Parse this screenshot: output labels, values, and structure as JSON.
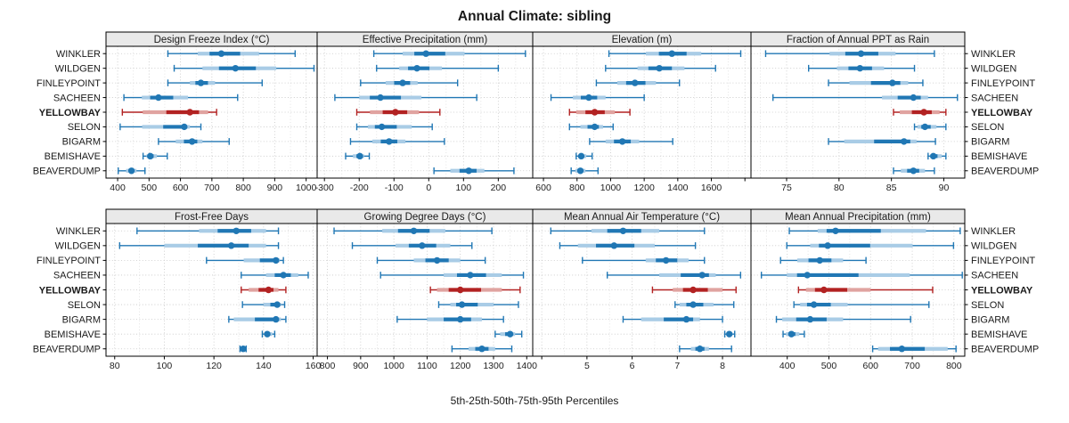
{
  "colors": {
    "blue": "#2077b4",
    "blue_light": "#a9cce6",
    "red": "#b22222",
    "red_light": "#e0a3a0",
    "header_bg": "#e9e9e9",
    "frame": "#000000",
    "grid_major": "#c6c6c6",
    "grid_minor": "#dedede",
    "text": "#1a1a1a"
  },
  "chart_data": {
    "type": "dot-interval",
    "title": "Annual Climate: sibling",
    "caption": "5th-25th-50th-75th-95th Percentiles",
    "percentiles": [
      5,
      25,
      50,
      75,
      95
    ],
    "grid": "dotted",
    "legend_position": "none",
    "highlight_station": "YELLOWBAY",
    "stations": [
      "WINKLER",
      "WILDGEN",
      "FINLEYPOINT",
      "SACHEEN",
      "YELLOWBAY",
      "SELON",
      "BIGARM",
      "BEMISHAVE",
      "BEAVERDUMP"
    ],
    "panels": [
      {
        "title": "Design Freeze Index (°C)",
        "row": 0,
        "col": 0,
        "xlim": [
          363,
          1035
        ],
        "ticks": [
          {
            "v": 400,
            "label": "400"
          },
          {
            "v": 500,
            "label": "500"
          },
          {
            "v": 600,
            "label": "600"
          },
          {
            "v": 700,
            "label": "700"
          },
          {
            "v": 800,
            "label": "800"
          },
          {
            "v": 900,
            "label": "900"
          },
          {
            "v": 1000,
            "label": "1000"
          }
        ],
        "series": [
          {
            "station": "WINKLER",
            "values": [
              560,
              655,
              730,
              850,
              965
            ]
          },
          {
            "station": "WILDGEN",
            "values": [
              580,
              670,
              775,
              905,
              1025
            ]
          },
          {
            "station": "FINLEYPOINT",
            "values": [
              560,
              630,
              665,
              710,
              860
            ]
          },
          {
            "station": "SACHEEN",
            "values": [
              420,
              477,
              530,
              624,
              782
            ]
          },
          {
            "station": "YELLOWBAY",
            "values": [
              415,
              480,
              630,
              688,
              715
            ]
          },
          {
            "station": "SELON",
            "values": [
              408,
              478,
              612,
              630,
              665
            ]
          },
          {
            "station": "BIGARM",
            "values": [
              530,
              585,
              637,
              670,
              755
            ]
          },
          {
            "station": "BEMISHAVE",
            "values": [
              481,
              492,
              504,
              525,
              558
            ]
          },
          {
            "station": "BEAVERDUMP",
            "values": [
              402,
              427,
              444,
              460,
              487
            ]
          }
        ]
      },
      {
        "title": "Effective Precipitation (mm)",
        "row": 0,
        "col": 1,
        "xlim": [
          -321,
          299
        ],
        "ticks": [
          {
            "v": -300,
            "label": "-300"
          },
          {
            "v": -200,
            "label": "-200"
          },
          {
            "v": -100,
            "label": "-100"
          },
          {
            "v": 0,
            "label": "0"
          },
          {
            "v": 100,
            "label": "100"
          },
          {
            "v": 200,
            "label": "200"
          }
        ],
        "series": [
          {
            "station": "WINKLER",
            "values": [
              -158,
              -75,
              -8,
              103,
              278
            ]
          },
          {
            "station": "WILDGEN",
            "values": [
              -150,
              -85,
              -34,
              38,
              200
            ]
          },
          {
            "station": "FINLEYPOINT",
            "values": [
              -196,
              -124,
              -75,
              -32,
              83
            ]
          },
          {
            "station": "SACHEEN",
            "values": [
              -270,
              -200,
              -139,
              -21,
              138
            ]
          },
          {
            "station": "YELLOWBAY",
            "values": [
              -207,
              -169,
              -96,
              -28,
              32
            ]
          },
          {
            "station": "SELON",
            "values": [
              -207,
              -175,
              -135,
              -49,
              10
            ]
          },
          {
            "station": "BIGARM",
            "values": [
              -225,
              -162,
              -114,
              -67,
              45
            ]
          },
          {
            "station": "BEMISHAVE",
            "values": [
              -239,
              -218,
              -198,
              -186,
              -171
            ]
          },
          {
            "station": "BEAVERDUMP",
            "values": [
              15,
              62,
              115,
              160,
              245
            ]
          }
        ]
      },
      {
        "title": "Elevation (m)",
        "row": 0,
        "col": 2,
        "xlim": [
          536,
          1836
        ],
        "ticks": [
          {
            "v": 600,
            "label": "600"
          },
          {
            "v": 800,
            "label": "800"
          },
          {
            "v": 1000,
            "label": "1000"
          },
          {
            "v": 1200,
            "label": "1200"
          },
          {
            "v": 1400,
            "label": "1400"
          },
          {
            "v": 1600,
            "label": "1600"
          },
          {
            "v": 1800,
            "label": ""
          }
        ],
        "series": [
          {
            "station": "WINKLER",
            "values": [
              990,
              1210,
              1365,
              1540,
              1775
            ]
          },
          {
            "station": "WILDGEN",
            "values": [
              970,
              1160,
              1290,
              1440,
              1625
            ]
          },
          {
            "station": "FINLEYPOINT",
            "values": [
              915,
              1040,
              1145,
              1270,
              1410
            ]
          },
          {
            "station": "SACHEEN",
            "values": [
              645,
              775,
              870,
              970,
              1200
            ]
          },
          {
            "station": "YELLOWBAY",
            "values": [
              755,
              795,
              905,
              1025,
              1115
            ]
          },
          {
            "station": "SELON",
            "values": [
              755,
              820,
              905,
              955,
              1015
            ]
          },
          {
            "station": "BIGARM",
            "values": [
              875,
              970,
              1070,
              1170,
              1370
            ]
          },
          {
            "station": "BEMISHAVE",
            "values": [
              795,
              810,
              825,
              855,
              890
            ]
          },
          {
            "station": "BEAVERDUMP",
            "values": [
              765,
              790,
              820,
              850,
              925
            ]
          }
        ]
      },
      {
        "title": "Fraction of Annual PPT as Rain",
        "row": 0,
        "col": 3,
        "xlim": [
          71.6,
          92.0
        ],
        "ticks": [
          {
            "v": 75,
            "label": "75"
          },
          {
            "v": 80,
            "label": "80"
          },
          {
            "v": 85,
            "label": "85"
          },
          {
            "v": 90,
            "label": "90"
          }
        ],
        "series": [
          {
            "station": "WINKLER",
            "values": [
              73.0,
              79.1,
              82.1,
              85.4,
              89.1
            ]
          },
          {
            "station": "WILDGEN",
            "values": [
              77.1,
              79.8,
              82.0,
              84.3,
              87.2
            ]
          },
          {
            "station": "FINLEYPOINT",
            "values": [
              79.0,
              81.0,
              85.1,
              86.6,
              88.0
            ]
          },
          {
            "station": "SACHEEN",
            "values": [
              73.7,
              84.1,
              87.1,
              88.5,
              91.3
            ]
          },
          {
            "station": "YELLOWBAY",
            "values": [
              85.2,
              85.8,
              88.1,
              89.6,
              90.2
            ]
          },
          {
            "station": "SELON",
            "values": [
              87.2,
              87.5,
              88.2,
              89.3,
              90.2
            ]
          },
          {
            "station": "BIGARM",
            "values": [
              79.0,
              80.5,
              86.2,
              87.4,
              89.2
            ]
          },
          {
            "station": "BEMISHAVE",
            "values": [
              88.5,
              88.7,
              89.0,
              89.8,
              90.2
            ]
          },
          {
            "station": "BEAVERDUMP",
            "values": [
              85.2,
              85.9,
              87.1,
              88.2,
              89.1
            ]
          }
        ]
      },
      {
        "title": "Frost-Free Days",
        "row": 1,
        "col": 0,
        "xlim": [
          76.5,
          161.6
        ],
        "ticks": [
          {
            "v": 80,
            "label": "80"
          },
          {
            "v": 100,
            "label": "100"
          },
          {
            "v": 120,
            "label": "120"
          },
          {
            "v": 140,
            "label": "140"
          },
          {
            "v": 160,
            "label": "160"
          }
        ],
        "series": [
          {
            "station": "WINKLER",
            "values": [
              89,
              114,
              129,
              141,
              146
            ]
          },
          {
            "station": "WILDGEN",
            "values": [
              82,
              100,
              127,
              141,
              146
            ]
          },
          {
            "station": "FINLEYPOINT",
            "values": [
              117,
              132,
              145,
              146.5,
              148
            ]
          },
          {
            "station": "SACHEEN",
            "values": [
              131,
              141,
              148,
              154,
              158
            ]
          },
          {
            "station": "YELLOWBAY",
            "values": [
              131,
              134,
              142,
              146,
              149
            ]
          },
          {
            "station": "SELON",
            "values": [
              131.5,
              140,
              145.5,
              147,
              148.5
            ]
          },
          {
            "station": "BIGARM",
            "values": [
              126,
              128,
              145,
              147,
              149
            ]
          },
          {
            "station": "BEMISHAVE",
            "values": [
              139.5,
              140.5,
              141.5,
              143.5,
              144.5
            ]
          },
          {
            "station": "BEAVERDUMP",
            "values": [
              130.5,
              131.3,
              131.8,
              132.3,
              133
            ]
          }
        ]
      },
      {
        "title": "Growing Degree Days (°C)",
        "row": 1,
        "col": 1,
        "xlim": [
          769,
          1418
        ],
        "ticks": [
          {
            "v": 800,
            "label": "800"
          },
          {
            "v": 900,
            "label": "900"
          },
          {
            "v": 1000,
            "label": "1000"
          },
          {
            "v": 1100,
            "label": "1100"
          },
          {
            "v": 1200,
            "label": "1200"
          },
          {
            "v": 1300,
            "label": "1300"
          },
          {
            "v": 1400,
            "label": "1400"
          }
        ],
        "series": [
          {
            "station": "WINKLER",
            "values": [
              820,
              965,
              1060,
              1155,
              1295
            ]
          },
          {
            "station": "WILDGEN",
            "values": [
              875,
              1005,
              1085,
              1170,
              1235
            ]
          },
          {
            "station": "FINLEYPOINT",
            "values": [
              950,
              1060,
              1130,
              1200,
              1275
            ]
          },
          {
            "station": "SACHEEN",
            "values": [
              960,
              1150,
              1230,
              1325,
              1390
            ]
          },
          {
            "station": "YELLOWBAY",
            "values": [
              1110,
              1130,
              1200,
              1325,
              1380
            ]
          },
          {
            "station": "SELON",
            "values": [
              1135,
              1170,
              1205,
              1300,
              1375
            ]
          },
          {
            "station": "BIGARM",
            "values": [
              1010,
              1100,
              1200,
              1265,
              1330
            ]
          },
          {
            "station": "BEMISHAVE",
            "values": [
              1305,
              1320,
              1350,
              1365,
              1385
            ]
          },
          {
            "station": "BEAVERDUMP",
            "values": [
              1175,
              1225,
              1265,
              1305,
              1355
            ]
          }
        ]
      },
      {
        "title": "Mean Annual Air Temperature (°C)",
        "row": 1,
        "col": 2,
        "xlim": [
          3.8,
          8.63
        ],
        "ticks": [
          {
            "v": 4,
            "label": ""
          },
          {
            "v": 5,
            "label": "5"
          },
          {
            "v": 6,
            "label": "6"
          },
          {
            "v": 7,
            "label": "7"
          },
          {
            "v": 8,
            "label": "8"
          }
        ],
        "series": [
          {
            "station": "WINKLER",
            "values": [
              4.2,
              5.1,
              5.8,
              6.6,
              7.6
            ]
          },
          {
            "station": "WILDGEN",
            "values": [
              4.4,
              4.8,
              5.6,
              6.5,
              7.4
            ]
          },
          {
            "station": "FINLEYPOINT",
            "values": [
              4.9,
              6.3,
              6.75,
              7.25,
              7.6
            ]
          },
          {
            "station": "SACHEEN",
            "values": [
              5.45,
              6.6,
              7.55,
              7.85,
              8.4
            ]
          },
          {
            "station": "YELLOWBAY",
            "values": [
              6.45,
              6.9,
              7.35,
              8.0,
              8.3
            ]
          },
          {
            "station": "SELON",
            "values": [
              6.95,
              7.05,
              7.35,
              7.8,
              8.25
            ]
          },
          {
            "station": "BIGARM",
            "values": [
              5.8,
              6.2,
              7.2,
              7.5,
              8.0
            ]
          },
          {
            "station": "BEMISHAVE",
            "values": [
              8.05,
              8.1,
              8.15,
              8.22,
              8.27
            ]
          },
          {
            "station": "BEAVERDUMP",
            "values": [
              7.05,
              7.3,
              7.5,
              7.7,
              8.2
            ]
          }
        ]
      },
      {
        "title": "Mean Annual Precipitation (mm)",
        "row": 1,
        "col": 3,
        "xlim": [
          313,
          826
        ],
        "ticks": [
          {
            "v": 400,
            "label": "400"
          },
          {
            "v": 500,
            "label": "500"
          },
          {
            "v": 600,
            "label": "600"
          },
          {
            "v": 700,
            "label": "700"
          },
          {
            "v": 800,
            "label": "800"
          }
        ],
        "series": [
          {
            "station": "WINKLER",
            "values": [
              405,
              473,
              516,
              733,
              815
            ]
          },
          {
            "station": "WILDGEN",
            "values": [
              399,
              455,
              497,
              701,
              799
            ]
          },
          {
            "station": "FINLEYPOINT",
            "values": [
              384,
              424,
              478,
              534,
              589
            ]
          },
          {
            "station": "SACHEEN",
            "values": [
              338,
              399,
              448,
              694,
              820
            ]
          },
          {
            "station": "YELLOWBAY",
            "values": [
              427,
              445,
              488,
              600,
              749
            ]
          },
          {
            "station": "SELON",
            "values": [
              416,
              431,
              464,
              545,
              740
            ]
          },
          {
            "station": "BIGARM",
            "values": [
              374,
              388,
              455,
              534,
              696
            ]
          },
          {
            "station": "BEMISHAVE",
            "values": [
              390,
              397,
              410,
              429,
              441
            ]
          },
          {
            "station": "BEAVERDUMP",
            "values": [
              605,
              618,
              675,
              785,
              805
            ]
          }
        ]
      }
    ]
  }
}
